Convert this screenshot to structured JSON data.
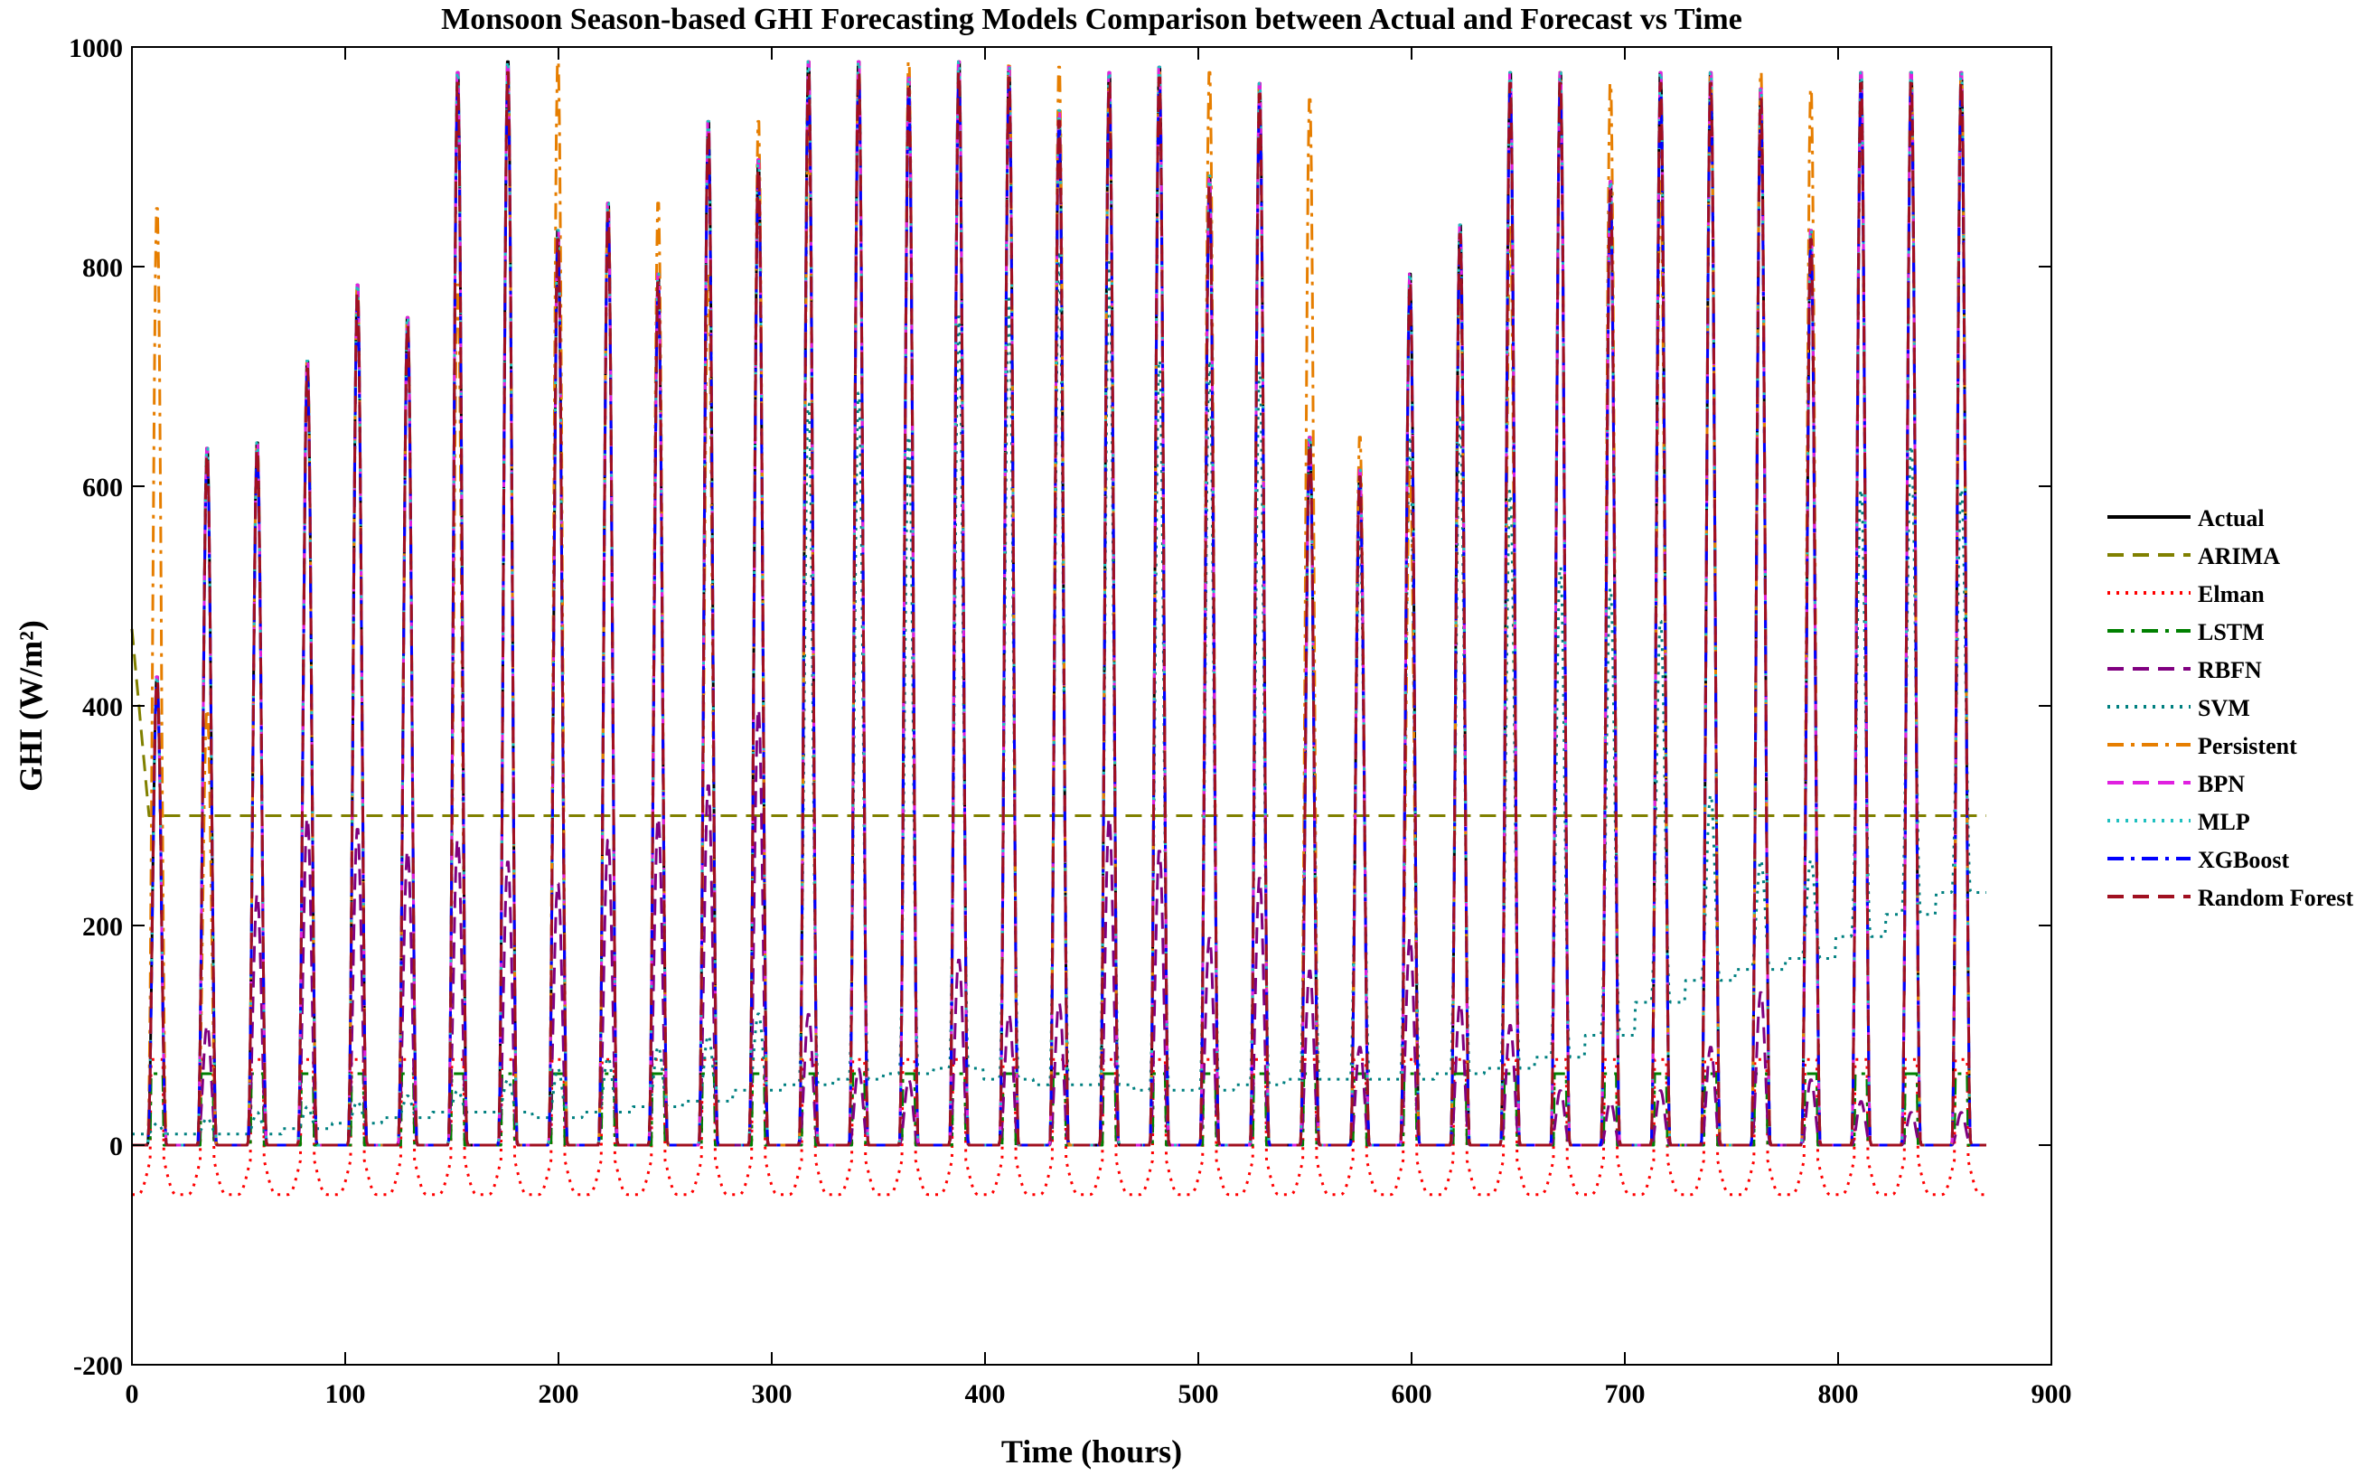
{
  "chart_data": {
    "type": "line",
    "title": "Monsoon Season-based GHI Forecasting Models Comparison between Actual and Forecast vs Time",
    "xlabel": "Time (hours)",
    "ylabel": "GHI (W/m²)",
    "xlim": [
      0,
      900
    ],
    "ylim": [
      -200,
      1000
    ],
    "xticks": [
      "0",
      "100",
      "200",
      "300",
      "400",
      "500",
      "600",
      "700",
      "800",
      "900"
    ],
    "yticks": [
      "-200",
      "0",
      "200",
      "400",
      "600",
      "800",
      "1000"
    ],
    "legend_position": "right",
    "grid": false,
    "days": 37,
    "period_hours": 23.5,
    "sample_step_hours": 0.5,
    "actual_daily_peaks": [
      430,
      640,
      645,
      720,
      790,
      760,
      985,
      995,
      840,
      865,
      800,
      940,
      905,
      995,
      995,
      980,
      995,
      990,
      950,
      985,
      990,
      890,
      975,
      650,
      620,
      800,
      845,
      985,
      985,
      885,
      985,
      985,
      970,
      840,
      985,
      985,
      985
    ],
    "series": [
      {
        "name": "Actual",
        "color": "#000000",
        "dash": "solid",
        "peak_scale": 1.0,
        "night_value": 0
      },
      {
        "name": "ARIMA",
        "color": "#808000",
        "dash": "dash",
        "constant": 300,
        "start_value": 470
      },
      {
        "name": "Elman",
        "color": "#ff0000",
        "dash": "dot",
        "day_value": 78,
        "night_value": -45
      },
      {
        "name": "LSTM",
        "color": "#008000",
        "dash": "dashdot",
        "day_value": 65,
        "night_value": 0
      },
      {
        "name": "RBFN",
        "color": "#800080",
        "dash": "dash",
        "daily_peaks": [
          420,
          110,
          230,
          300,
          290,
          270,
          280,
          260,
          240,
          280,
          300,
          330,
          400,
          120,
          70,
          60,
          170,
          120,
          130,
          300,
          270,
          190,
          245,
          160,
          90,
          190,
          130,
          110,
          50,
          40,
          50,
          90,
          140,
          60,
          40,
          30,
          30
        ]
      },
      {
        "name": "SVM",
        "color": "#008080",
        "dash": "dot",
        "daily_min": [
          10,
          10,
          10,
          15,
          20,
          25,
          30,
          30,
          25,
          30,
          35,
          40,
          50,
          55,
          60,
          65,
          70,
          60,
          55,
          55,
          50,
          50,
          55,
          60,
          60,
          60,
          65,
          70,
          80,
          100,
          130,
          150,
          160,
          170,
          190,
          210,
          230
        ],
        "daily_peaks": [
          20,
          25,
          30,
          35,
          40,
          45,
          50,
          60,
          70,
          80,
          90,
          100,
          120,
          680,
          690,
          650,
          760,
          780,
          820,
          810,
          720,
          720,
          710,
          640,
          560,
          650,
          670,
          600,
          530,
          510,
          480,
          320,
          260,
          260,
          600,
          640,
          600
        ]
      },
      {
        "name": "Persistent",
        "color": "#e67e00",
        "dash": "dashdot",
        "daily_peaks": [
          860,
          400,
          645,
          720,
          790,
          760,
          790,
          985,
          995,
          865,
          865,
          800,
          940,
          940,
          995,
          995,
          980,
          995,
          990,
          975,
          985,
          985,
          970,
          960,
          650,
          620,
          800,
          845,
          985,
          975,
          885,
          985,
          985,
          970,
          955,
          985,
          985
        ]
      },
      {
        "name": "BPN",
        "color": "#e020e0",
        "dash": "dash",
        "peak_scale": 1.0,
        "night_value": 0
      },
      {
        "name": "MLP",
        "color": "#20c0c0",
        "dash": "dot",
        "peak_scale": 1.0,
        "night_value": 0
      },
      {
        "name": "XGBoost",
        "color": "#0000ff",
        "dash": "dashdot",
        "peak_scale": 0.98,
        "night_value": 0
      },
      {
        "name": "Random Forest",
        "color": "#a01020",
        "dash": "dash",
        "peak_scale": 0.99,
        "night_value": 0
      }
    ]
  }
}
